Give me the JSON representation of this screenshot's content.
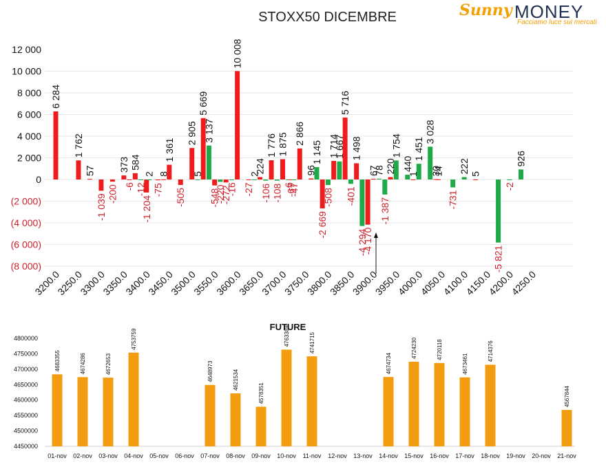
{
  "title": "STOXX50 DICEMBRE",
  "logo": {
    "brand_first": "Sunny",
    "brand_second": "MONEY",
    "tagline": "Facciamo luce sui mercati"
  },
  "colors": {
    "calls": "#ee1c1c",
    "puts": "#1faa4a",
    "negative_label": "#d0202a",
    "future_bars": "#f49c10",
    "grid": "#e6e6e6"
  },
  "chart_data": [
    {
      "type": "bar",
      "title": "STOXX50 DICEMBRE",
      "categories": [
        "3200.0",
        "3250.0",
        "3300.0",
        "3350.0",
        "3400.0",
        "3450.0",
        "3500.0",
        "3550.0",
        "3600.0",
        "3650.0",
        "3700.0",
        "3750.0",
        "3800.0",
        "3850.0",
        "3900.0",
        "3950.0",
        "4000.0",
        "4050.0",
        "4100.0",
        "4150.0",
        "4200.0",
        "4250.0"
      ],
      "y_ticks": [
        "12 000",
        "10 000",
        "8 000",
        "6 000",
        "4 000",
        "2 000",
        "0",
        "(2 000)",
        "(4 000)",
        "(6 000)",
        "(8 000)"
      ],
      "ylim": [
        -8000,
        12000
      ],
      "annotation": "arrow marker at 3875 pointing up",
      "bars": [
        {
          "series": "red",
          "x": 3200,
          "value": 6284,
          "label": "6 284"
        },
        {
          "series": "red",
          "x": 3250,
          "value": 1762,
          "label": "1 762"
        },
        {
          "series": "red",
          "x": 3275,
          "value": 57,
          "label": "57"
        },
        {
          "series": "red",
          "x": 3300,
          "value": -1039,
          "label": "-1 039"
        },
        {
          "series": "red",
          "x": 3325,
          "value": -200,
          "label": "-200"
        },
        {
          "series": "red",
          "x": 3350,
          "value": 373,
          "label": "373"
        },
        {
          "series": "red",
          "x": 3362.5,
          "value": -6,
          "label": "-6"
        },
        {
          "series": "red",
          "x": 3375,
          "value": 584,
          "label": "584"
        },
        {
          "series": "green",
          "x": 3387.5,
          "value": -12,
          "label": "-12"
        },
        {
          "series": "red",
          "x": 3400,
          "value": -1204,
          "label": "-1 204"
        },
        {
          "series": "green",
          "x": 3406,
          "value": 2,
          "label": "2"
        },
        {
          "series": "red",
          "x": 3425,
          "value": -75,
          "label": "-75"
        },
        {
          "series": "red",
          "x": 3437.5,
          "value": 8,
          "label": "8"
        },
        {
          "series": "red",
          "x": 3450,
          "value": 1361,
          "label": "1 361"
        },
        {
          "series": "red",
          "x": 3475,
          "value": -505,
          "label": "-505"
        },
        {
          "series": "red",
          "x": 3500,
          "value": 2905,
          "label": "2 905"
        },
        {
          "series": "green",
          "x": 3512.5,
          "value": 5,
          "label": "5"
        },
        {
          "series": "red",
          "x": 3525,
          "value": 5669,
          "label": "5 669"
        },
        {
          "series": "green",
          "x": 3537.5,
          "value": 3137,
          "label": "3 137"
        },
        {
          "series": "red",
          "x": 3550,
          "value": -548,
          "label": "-548"
        },
        {
          "series": "green",
          "x": 3562.5,
          "value": -220,
          "label": "-220"
        },
        {
          "series": "red",
          "x": 3575,
          "value": -272,
          "label": "-272"
        },
        {
          "series": "green",
          "x": 3587.5,
          "value": -16,
          "label": "-16"
        },
        {
          "series": "red",
          "x": 3600,
          "value": 10008,
          "label": "10 008"
        },
        {
          "series": "red",
          "x": 3625,
          "value": -27,
          "label": "-27"
        },
        {
          "series": "green",
          "x": 3637.5,
          "value": 2,
          "label": "2"
        },
        {
          "series": "red",
          "x": 3650,
          "value": 224,
          "label": "224"
        },
        {
          "series": "green",
          "x": 3662.5,
          "value": -106,
          "label": "-106"
        },
        {
          "series": "red",
          "x": 3675,
          "value": 1776,
          "label": "1 776"
        },
        {
          "series": "green",
          "x": 3687.5,
          "value": -108,
          "label": "-108"
        },
        {
          "series": "red",
          "x": 3700,
          "value": 1875,
          "label": "1 875"
        },
        {
          "series": "green",
          "x": 3712.5,
          "value": -6,
          "label": "-6"
        },
        {
          "series": "red",
          "x": 3718,
          "value": -67,
          "label": "-67"
        },
        {
          "series": "green",
          "x": 3725,
          "value": -47,
          "label": "-47"
        },
        {
          "series": "red",
          "x": 3737.5,
          "value": 2866,
          "label": "2 866"
        },
        {
          "series": "red",
          "x": 3762.5,
          "value": 96,
          "label": "96"
        },
        {
          "series": "green",
          "x": 3775,
          "value": 1145,
          "label": "1 145"
        },
        {
          "series": "red",
          "x": 3787.5,
          "value": -2669,
          "label": "-2 669"
        },
        {
          "series": "green",
          "x": 3800,
          "value": -508,
          "label": "-508"
        },
        {
          "series": "red",
          "x": 3812.5,
          "value": 1714,
          "label": "1 714"
        },
        {
          "series": "green",
          "x": 3825,
          "value": 1667,
          "label": "1 667"
        },
        {
          "series": "red",
          "x": 3837.5,
          "value": 5716,
          "label": "5 716"
        },
        {
          "series": "green",
          "x": 3850,
          "value": -401,
          "label": "-401"
        },
        {
          "series": "red",
          "x": 3862.5,
          "value": 1498,
          "label": "1 498"
        },
        {
          "series": "green",
          "x": 3875,
          "value": -4294,
          "label": "-4 294"
        },
        {
          "series": "red",
          "x": 3887.5,
          "value": -4170,
          "label": "-4 170"
        },
        {
          "series": "red",
          "x": 3900,
          "value": 67,
          "label": "67"
        },
        {
          "series": "green",
          "x": 3912.5,
          "value": 78,
          "label": "78"
        },
        {
          "series": "green",
          "x": 3925,
          "value": -1387,
          "label": "-1 387"
        },
        {
          "series": "red",
          "x": 3937.5,
          "value": 220,
          "label": "220"
        },
        {
          "series": "green",
          "x": 3950,
          "value": 1754,
          "label": "1 754"
        },
        {
          "series": "green",
          "x": 3975,
          "value": 440,
          "label": "440"
        },
        {
          "series": "red",
          "x": 3987.5,
          "value": 1,
          "label": "1"
        },
        {
          "series": "green",
          "x": 4000,
          "value": 1451,
          "label": "1 451"
        },
        {
          "series": "green",
          "x": 4025,
          "value": 3028,
          "label": "3 028"
        },
        {
          "series": "red",
          "x": 4037.5,
          "value": 30,
          "label": "30"
        },
        {
          "series": "red",
          "x": 4043,
          "value": 14,
          "label": "14"
        },
        {
          "series": "green",
          "x": 4075,
          "value": -731,
          "label": "-731"
        },
        {
          "series": "green",
          "x": 4100,
          "value": 222,
          "label": "222"
        },
        {
          "series": "red",
          "x": 4125,
          "value": 5,
          "label": "5"
        },
        {
          "series": "green",
          "x": 4175,
          "value": -5821,
          "label": "-5 821"
        },
        {
          "series": "green",
          "x": 4200,
          "value": -2,
          "label": "-2"
        },
        {
          "series": "green",
          "x": 4225,
          "value": 926,
          "label": "926"
        }
      ]
    },
    {
      "type": "bar",
      "title": "FUTURE",
      "categories": [
        "01-nov",
        "02-nov",
        "03-nov",
        "04-nov",
        "05-nov",
        "06-nov",
        "07-nov",
        "08-nov",
        "09-nov",
        "10-nov",
        "11-nov",
        "12-nov",
        "13-nov",
        "14-nov",
        "15-nov",
        "16-nov",
        "17-nov",
        "18-nov",
        "19-nov",
        "20-nov",
        "21-nov"
      ],
      "values": [
        4683355,
        4674286,
        4672653,
        4753759,
        null,
        null,
        4648973,
        4621534,
        4578351,
        4763389,
        4741715,
        null,
        null,
        4674734,
        4724230,
        4720118,
        4673461,
        4714376,
        null,
        null,
        4567844
      ],
      "y_ticks": [
        "4800000",
        "4750000",
        "4700000",
        "4650000",
        "4600000",
        "4550000",
        "4500000",
        "4450000"
      ],
      "ylim": [
        4450000,
        4800000
      ]
    }
  ]
}
